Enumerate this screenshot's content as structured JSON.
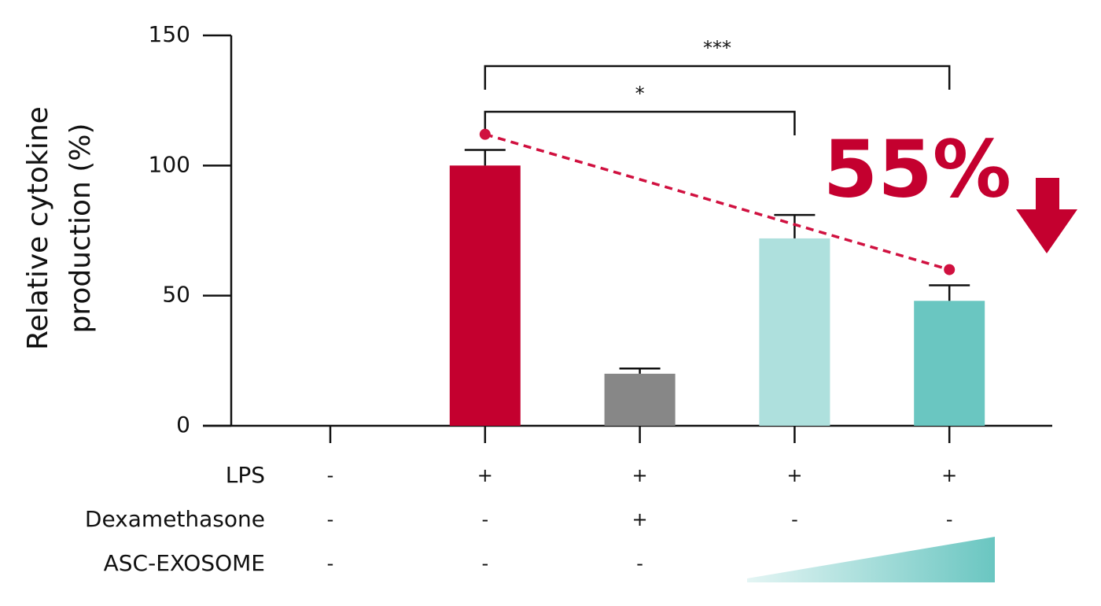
{
  "chart_data": {
    "type": "bar",
    "ylabel": [
      "Relative cytokine",
      "production (%)"
    ],
    "categories": [
      null,
      null,
      null,
      null,
      null
    ],
    "values": [
      0,
      100,
      20,
      72,
      48
    ],
    "errors": [
      null,
      6,
      2,
      9,
      6
    ],
    "colors": [
      "#c4002f",
      "#c4002f",
      "#878787",
      "#aee0dd",
      "#6ac6c1"
    ],
    "ylim": [
      0,
      150
    ],
    "yticks": [
      0,
      50,
      100,
      150
    ],
    "conditions": [
      {
        "name": "LPS",
        "values": [
          "-",
          "+",
          "+",
          "+",
          "+"
        ]
      },
      {
        "name": "Dexamethasone",
        "values": [
          "-",
          "-",
          "+",
          "-",
          "-"
        ]
      },
      {
        "name": "ASC-EXOSOME",
        "values": [
          "-",
          "-",
          "-",
          null,
          null
        ]
      }
    ],
    "significance": [
      {
        "label": "*"
      },
      {
        "label": "***"
      }
    ],
    "trend": {
      "values": [
        112,
        60
      ],
      "color": "#d0103f"
    },
    "callout": "55%"
  }
}
